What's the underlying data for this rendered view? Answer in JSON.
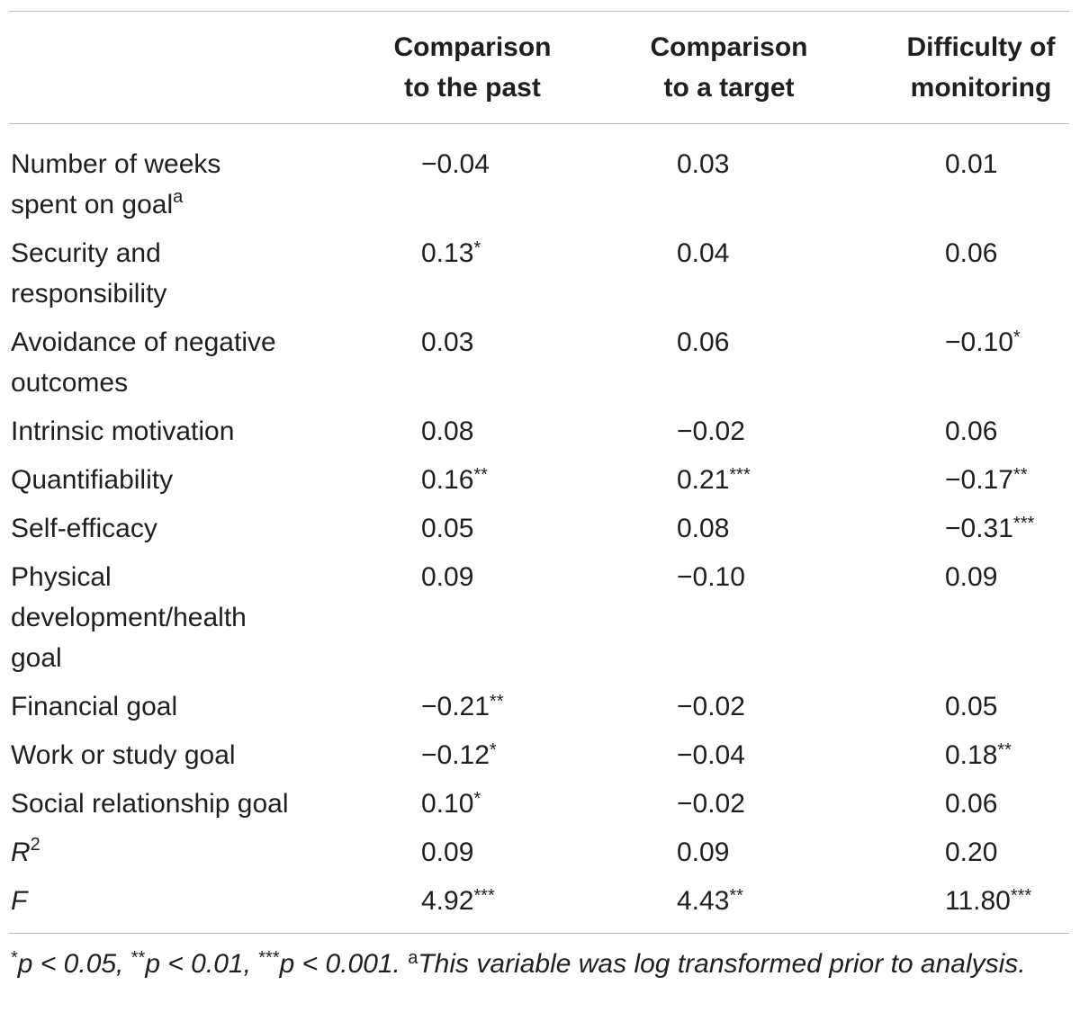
{
  "headers": {
    "col1": [
      "Comparison",
      "to the past"
    ],
    "col2": [
      "Comparison",
      "to a target"
    ],
    "col3": [
      "Difficulty of",
      "monitoring"
    ]
  },
  "rows": [
    {
      "label": [
        "Number of weeks",
        "spent on goal"
      ],
      "label_sup": "a",
      "v": [
        {
          "n": "−0.04",
          "s": ""
        },
        {
          "n": "0.03",
          "s": ""
        },
        {
          "n": "0.01",
          "s": ""
        }
      ]
    },
    {
      "label": [
        "Security and",
        "responsibility"
      ],
      "v": [
        {
          "n": "0.13",
          "s": "*"
        },
        {
          "n": "0.04",
          "s": ""
        },
        {
          "n": "0.06",
          "s": ""
        }
      ]
    },
    {
      "label": [
        "Avoidance of negative",
        "outcomes"
      ],
      "v": [
        {
          "n": "0.03",
          "s": ""
        },
        {
          "n": "0.06",
          "s": ""
        },
        {
          "n": "−0.10",
          "s": "*"
        }
      ]
    },
    {
      "label": [
        "Intrinsic motivation"
      ],
      "v": [
        {
          "n": "0.08",
          "s": ""
        },
        {
          "n": "−0.02",
          "s": ""
        },
        {
          "n": "0.06",
          "s": ""
        }
      ]
    },
    {
      "label": [
        "Quantifiability"
      ],
      "v": [
        {
          "n": "0.16",
          "s": "**"
        },
        {
          "n": "0.21",
          "s": "***"
        },
        {
          "n": "−0.17",
          "s": "**"
        }
      ]
    },
    {
      "label": [
        "Self-efficacy"
      ],
      "v": [
        {
          "n": "0.05",
          "s": ""
        },
        {
          "n": "0.08",
          "s": ""
        },
        {
          "n": "−0.31",
          "s": "***"
        }
      ]
    },
    {
      "label": [
        "Physical",
        "development/health",
        "goal"
      ],
      "v": [
        {
          "n": "0.09",
          "s": ""
        },
        {
          "n": "−0.10",
          "s": ""
        },
        {
          "n": "0.09",
          "s": ""
        }
      ]
    },
    {
      "label": [
        "Financial goal"
      ],
      "v": [
        {
          "n": "−0.21",
          "s": "**"
        },
        {
          "n": "−0.02",
          "s": ""
        },
        {
          "n": "0.05",
          "s": ""
        }
      ]
    },
    {
      "label": [
        "Work or study goal"
      ],
      "v": [
        {
          "n": "−0.12",
          "s": "*"
        },
        {
          "n": "−0.04",
          "s": ""
        },
        {
          "n": "0.18",
          "s": "**"
        }
      ]
    },
    {
      "label": [
        "Social relationship goal"
      ],
      "v": [
        {
          "n": "0.10",
          "s": "*"
        },
        {
          "n": "−0.02",
          "s": ""
        },
        {
          "n": "0.06",
          "s": ""
        }
      ]
    },
    {
      "label": [
        "R"
      ],
      "label_sup": "2",
      "italic": true,
      "v": [
        {
          "n": "0.09",
          "s": ""
        },
        {
          "n": "0.09",
          "s": ""
        },
        {
          "n": "0.20",
          "s": ""
        }
      ]
    },
    {
      "label": [
        "F"
      ],
      "italic": true,
      "v": [
        {
          "n": "4.92",
          "s": "***"
        },
        {
          "n": "4.43",
          "s": "**"
        },
        {
          "n": "11.80",
          "s": "***"
        }
      ]
    }
  ],
  "footnote": {
    "p1_star": "*",
    "p1": "p < 0.05, ",
    "p2_star": "**",
    "p2": "p < 0.01, ",
    "p3_star": "***",
    "p3": "p < 0.001. ",
    "note_sup": "a",
    "note": "This variable was log transformed prior to analysis."
  }
}
